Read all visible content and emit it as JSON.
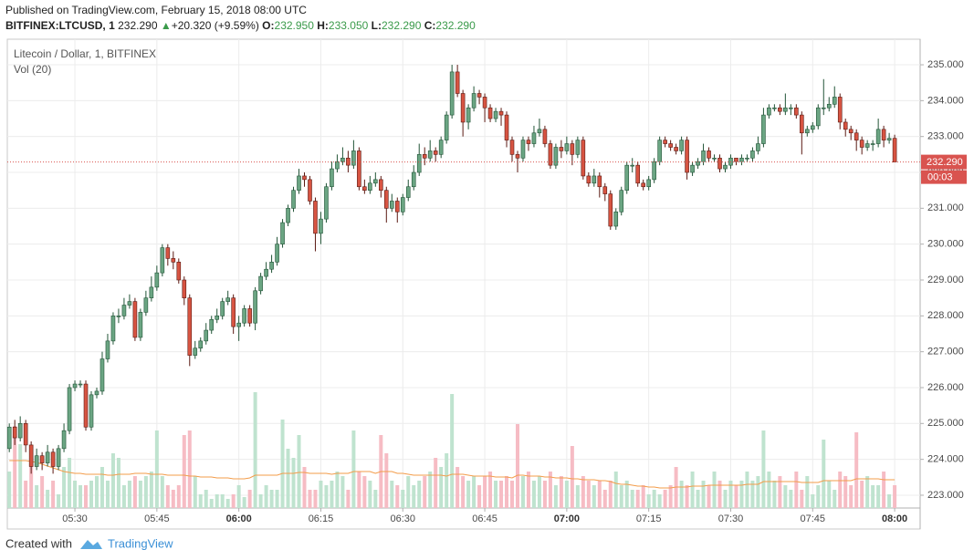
{
  "header": {
    "published": "Published on TradingView.com, February 15, 2018 08:00 UTC",
    "symbol": "BITFINEX:LTCUSD, 1",
    "last": "232.290",
    "arrow": "▲",
    "change": "+20.320 (+9.59%)",
    "o_label": "O:",
    "o": "232.950",
    "h_label": "H:",
    "h": "233.050",
    "l_label": "L:",
    "l": "232.290",
    "c_label": "C:",
    "c": "232.290"
  },
  "chart_data": {
    "type": "candlestick",
    "title": "Litecoin / Dollar, 1, BITFINEX",
    "volume_title": "Vol (20)",
    "x": [
      "05:18",
      "05:19",
      "05:20",
      "05:21",
      "05:22",
      "05:23",
      "05:24",
      "05:25",
      "05:26",
      "05:27",
      "05:28",
      "05:29",
      "05:30",
      "05:31",
      "05:32",
      "05:33",
      "05:34",
      "05:35",
      "05:36",
      "05:37",
      "05:38",
      "05:39",
      "05:40",
      "05:41",
      "05:42",
      "05:43",
      "05:44",
      "05:45",
      "05:46",
      "05:47",
      "05:48",
      "05:49",
      "05:50",
      "05:51",
      "05:52",
      "05:53",
      "05:54",
      "05:55",
      "05:56",
      "05:57",
      "05:58",
      "05:59",
      "06:00",
      "06:01",
      "06:02",
      "06:03",
      "06:04",
      "06:05",
      "06:06",
      "06:07",
      "06:08",
      "06:09",
      "06:10",
      "06:11",
      "06:12",
      "06:13",
      "06:14",
      "06:15",
      "06:16",
      "06:17",
      "06:18",
      "06:19",
      "06:20",
      "06:21",
      "06:22",
      "06:23",
      "06:24",
      "06:25",
      "06:26",
      "06:27",
      "06:28",
      "06:29",
      "06:30",
      "06:31",
      "06:32",
      "06:33",
      "06:34",
      "06:35",
      "06:36",
      "06:37",
      "06:38",
      "06:39",
      "06:40",
      "06:41",
      "06:42",
      "06:43",
      "06:44",
      "06:45",
      "06:46",
      "06:47",
      "06:48",
      "06:49",
      "06:50",
      "06:51",
      "06:52",
      "06:53",
      "06:54",
      "06:55",
      "06:56",
      "06:57",
      "06:58",
      "06:59",
      "07:00",
      "07:01",
      "07:02",
      "07:03",
      "07:04",
      "07:05",
      "07:06",
      "07:07",
      "07:08",
      "07:09",
      "07:10",
      "07:11",
      "07:12",
      "07:13",
      "07:14",
      "07:15",
      "07:16",
      "07:17",
      "07:18",
      "07:19",
      "07:20",
      "07:21",
      "07:22",
      "07:23",
      "07:24",
      "07:25",
      "07:26",
      "07:27",
      "07:28",
      "07:29",
      "07:30",
      "07:31",
      "07:32",
      "07:33",
      "07:34",
      "07:35",
      "07:36",
      "07:37",
      "07:38",
      "07:39",
      "07:40",
      "07:41",
      "07:42",
      "07:43",
      "07:44",
      "07:45",
      "07:46",
      "07:47",
      "07:48",
      "07:49",
      "07:50",
      "07:51",
      "07:52",
      "07:53",
      "07:54",
      "07:55",
      "07:56",
      "07:57",
      "07:58",
      "07:59",
      "08:00"
    ],
    "open": [
      224.3,
      224.9,
      224.6,
      225.0,
      224.4,
      223.8,
      224.1,
      223.9,
      224.2,
      223.8,
      224.3,
      224.8,
      226.0,
      226.1,
      226.1,
      224.9,
      225.8,
      225.9,
      226.8,
      227.3,
      228.0,
      228.0,
      228.3,
      228.4,
      227.4,
      228.1,
      228.5,
      228.8,
      229.2,
      229.9,
      229.6,
      229.5,
      229.0,
      228.5,
      226.9,
      227.1,
      227.3,
      227.6,
      227.9,
      228.0,
      228.4,
      228.5,
      227.7,
      227.8,
      228.2,
      227.8,
      228.7,
      229.1,
      229.3,
      229.5,
      230.0,
      230.6,
      231.0,
      231.5,
      231.9,
      231.8,
      231.2,
      230.3,
      230.7,
      231.6,
      232.1,
      232.3,
      232.4,
      232.2,
      232.6,
      231.6,
      231.5,
      231.7,
      231.8,
      231.5,
      231.0,
      231.2,
      230.9,
      231.3,
      231.6,
      232.0,
      232.5,
      232.4,
      232.6,
      232.5,
      232.9,
      233.6,
      234.8,
      234.2,
      233.4,
      233.8,
      234.2,
      234.1,
      233.8,
      233.5,
      233.7,
      233.6,
      232.9,
      232.5,
      232.4,
      232.9,
      232.8,
      233.1,
      233.2,
      232.8,
      232.2,
      232.7,
      232.6,
      232.8,
      232.5,
      232.9,
      231.9,
      231.7,
      231.9,
      231.6,
      231.4,
      230.5,
      230.9,
      231.5,
      232.2,
      232.2,
      231.7,
      231.6,
      231.8,
      232.3,
      232.9,
      232.8,
      232.7,
      232.6,
      232.9,
      232.0,
      232.2,
      232.3,
      232.6,
      232.4,
      232.4,
      232.1,
      232.2,
      232.4,
      232.3,
      232.4,
      232.4,
      232.6,
      232.8,
      233.6,
      233.8,
      233.8,
      233.7,
      233.8,
      233.8,
      233.6,
      233.1,
      233.2,
      233.3,
      233.8,
      233.8,
      233.9,
      234.1,
      233.4,
      233.2,
      233.1,
      232.9,
      232.7,
      232.8,
      232.8,
      233.2,
      232.9,
      232.95
    ],
    "high": [
      225.0,
      225.1,
      225.2,
      225.1,
      224.5,
      224.3,
      224.2,
      224.4,
      224.3,
      224.4,
      225.0,
      226.1,
      226.2,
      226.2,
      226.2,
      225.9,
      226.0,
      227.0,
      227.5,
      228.1,
      228.2,
      228.5,
      228.6,
      228.5,
      228.2,
      228.7,
      229.1,
      229.4,
      230.0,
      230.0,
      229.8,
      229.6,
      229.1,
      228.6,
      227.3,
      227.4,
      227.8,
      228.0,
      228.2,
      228.5,
      228.7,
      228.6,
      228.0,
      228.3,
      228.3,
      228.8,
      229.2,
      229.5,
      229.7,
      230.2,
      230.7,
      231.1,
      231.6,
      232.1,
      232.0,
      231.9,
      231.3,
      230.9,
      231.7,
      232.3,
      232.5,
      232.7,
      232.6,
      232.9,
      232.7,
      231.8,
      231.9,
      232.0,
      231.9,
      231.6,
      231.4,
      231.3,
      231.4,
      231.8,
      232.2,
      232.8,
      232.7,
      232.9,
      232.7,
      233.0,
      233.7,
      235.0,
      235.0,
      234.3,
      233.9,
      234.4,
      234.3,
      234.2,
      233.9,
      233.8,
      233.8,
      233.7,
      233.0,
      232.6,
      233.0,
      233.0,
      233.3,
      233.5,
      233.3,
      232.9,
      232.8,
      232.9,
      233.0,
      232.9,
      233.0,
      233.0,
      232.0,
      232.1,
      232.0,
      231.7,
      231.5,
      231.0,
      231.6,
      232.3,
      232.4,
      232.3,
      231.8,
      231.9,
      232.4,
      233.0,
      233.0,
      232.9,
      232.8,
      233.0,
      233.0,
      232.3,
      232.4,
      232.8,
      232.7,
      232.5,
      232.5,
      232.3,
      232.5,
      232.4,
      232.5,
      232.5,
      232.7,
      233.0,
      233.8,
      233.9,
      233.9,
      233.9,
      234.2,
      233.9,
      233.9,
      233.7,
      233.3,
      233.4,
      233.9,
      234.6,
      234.1,
      234.4,
      234.2,
      233.5,
      233.3,
      233.2,
      233.0,
      232.9,
      232.9,
      233.5,
      233.3,
      233.1,
      233.05
    ],
    "low": [
      224.2,
      224.4,
      224.5,
      224.2,
      223.6,
      223.7,
      223.7,
      223.8,
      223.6,
      223.7,
      224.2,
      224.7,
      225.9,
      226.0,
      224.8,
      224.8,
      225.7,
      225.8,
      226.7,
      227.2,
      227.8,
      227.9,
      228.2,
      227.3,
      227.3,
      228.0,
      228.4,
      228.7,
      229.1,
      229.4,
      229.3,
      228.9,
      228.3,
      226.6,
      226.8,
      227.0,
      227.2,
      227.5,
      227.8,
      227.9,
      228.3,
      227.5,
      227.3,
      227.7,
      227.7,
      227.6,
      228.6,
      229.0,
      229.2,
      229.4,
      229.9,
      230.5,
      230.9,
      231.4,
      231.6,
      231.1,
      229.8,
      230.0,
      230.6,
      231.5,
      232.0,
      232.2,
      232.0,
      232.1,
      231.5,
      231.4,
      231.4,
      231.6,
      231.3,
      230.6,
      230.9,
      230.6,
      230.8,
      231.2,
      231.5,
      231.9,
      232.2,
      232.3,
      232.3,
      232.4,
      232.8,
      233.5,
      234.1,
      233.0,
      233.2,
      233.7,
      233.9,
      233.4,
      233.4,
      233.4,
      233.3,
      232.7,
      232.3,
      232.0,
      232.3,
      232.6,
      232.7,
      233.0,
      232.7,
      232.1,
      232.1,
      232.4,
      232.5,
      232.2,
      232.4,
      231.8,
      231.6,
      231.6,
      231.3,
      231.2,
      230.4,
      230.4,
      230.8,
      231.4,
      232.0,
      231.6,
      231.5,
      231.5,
      231.7,
      232.2,
      232.7,
      232.6,
      232.5,
      232.5,
      231.8,
      231.9,
      232.1,
      232.2,
      232.3,
      232.3,
      232.0,
      232.0,
      232.1,
      232.2,
      232.2,
      232.3,
      232.3,
      232.5,
      232.7,
      233.5,
      233.7,
      233.6,
      233.6,
      233.6,
      233.5,
      232.5,
      233.0,
      233.1,
      233.2,
      233.6,
      233.7,
      233.8,
      233.2,
      233.0,
      232.9,
      232.6,
      232.5,
      232.6,
      232.6,
      232.7,
      232.7,
      232.8,
      232.29
    ],
    "close": [
      224.9,
      224.6,
      225.0,
      224.4,
      223.8,
      224.1,
      223.9,
      224.2,
      223.8,
      224.3,
      224.8,
      226.0,
      226.1,
      226.1,
      224.9,
      225.8,
      225.9,
      226.8,
      227.3,
      228.0,
      228.0,
      228.3,
      228.4,
      227.4,
      228.1,
      228.5,
      228.8,
      229.2,
      229.9,
      229.6,
      229.5,
      229.0,
      228.5,
      226.9,
      227.1,
      227.3,
      227.6,
      227.9,
      228.0,
      228.4,
      228.5,
      227.7,
      227.8,
      228.2,
      227.8,
      228.7,
      229.1,
      229.3,
      229.5,
      230.0,
      230.6,
      231.0,
      231.5,
      231.9,
      231.8,
      231.2,
      230.3,
      230.7,
      231.6,
      232.1,
      232.3,
      232.4,
      232.2,
      232.6,
      231.6,
      231.5,
      231.7,
      231.8,
      231.5,
      231.0,
      231.2,
      230.9,
      231.3,
      231.6,
      232.0,
      232.5,
      232.4,
      232.6,
      232.5,
      232.9,
      233.6,
      234.8,
      234.2,
      233.4,
      233.8,
      234.2,
      234.1,
      233.8,
      233.5,
      233.7,
      233.6,
      232.9,
      232.5,
      232.4,
      232.9,
      232.8,
      233.1,
      233.2,
      232.8,
      232.2,
      232.7,
      232.6,
      232.8,
      232.5,
      232.9,
      231.9,
      231.7,
      231.9,
      231.6,
      231.4,
      230.5,
      230.9,
      231.5,
      232.2,
      232.2,
      231.7,
      231.6,
      231.8,
      232.3,
      232.9,
      232.8,
      232.7,
      232.6,
      232.9,
      232.0,
      232.2,
      232.3,
      232.6,
      232.4,
      232.4,
      232.1,
      232.2,
      232.4,
      232.3,
      232.4,
      232.4,
      232.6,
      232.8,
      233.6,
      233.8,
      233.8,
      233.7,
      233.8,
      233.8,
      233.6,
      233.1,
      233.2,
      233.3,
      233.8,
      233.8,
      233.9,
      234.1,
      233.4,
      233.2,
      233.1,
      232.9,
      232.7,
      232.8,
      232.8,
      233.2,
      232.9,
      232.95,
      232.29
    ],
    "volume": [
      40,
      90,
      70,
      30,
      55,
      25,
      35,
      20,
      30,
      15,
      45,
      55,
      30,
      25,
      25,
      30,
      35,
      45,
      30,
      60,
      55,
      25,
      30,
      35,
      30,
      35,
      40,
      85,
      35,
      25,
      20,
      25,
      80,
      85,
      35,
      15,
      20,
      10,
      15,
      15,
      10,
      15,
      25,
      12,
      20,
      127,
      15,
      25,
      20,
      20,
      97,
      65,
      55,
      80,
      45,
      20,
      20,
      30,
      25,
      30,
      40,
      35,
      20,
      85,
      40,
      35,
      30,
      20,
      80,
      60,
      30,
      25,
      20,
      35,
      25,
      30,
      35,
      40,
      55,
      45,
      60,
      125,
      45,
      35,
      30,
      35,
      25,
      35,
      40,
      30,
      30,
      35,
      30,
      92,
      35,
      40,
      30,
      35,
      30,
      40,
      25,
      35,
      30,
      68,
      25,
      35,
      30,
      25,
      30,
      20,
      30,
      40,
      25,
      30,
      20,
      20,
      25,
      15,
      20,
      15,
      20,
      25,
      45,
      30,
      25,
      40,
      20,
      30,
      25,
      40,
      30,
      20,
      30,
      25,
      30,
      40,
      30,
      35,
      85,
      40,
      30,
      35,
      25,
      20,
      40,
      20,
      35,
      15,
      25,
      75,
      30,
      20,
      40,
      35,
      25,
      83,
      30,
      35,
      25,
      25,
      40,
      15,
      25
    ],
    "volume_ma": [
      52,
      52,
      52,
      52,
      51,
      50,
      48,
      46,
      44,
      42,
      40,
      39,
      38,
      38,
      37,
      37,
      37,
      37,
      36,
      36,
      37,
      37,
      37,
      38,
      38,
      38,
      37,
      37,
      37,
      36,
      36,
      36,
      36,
      35,
      35,
      34,
      34,
      34,
      33,
      33,
      33,
      32,
      32,
      32,
      33,
      36,
      36,
      36,
      36,
      36,
      38,
      38,
      38,
      39,
      39,
      38,
      38,
      38,
      38,
      37,
      38,
      38,
      38,
      40,
      40,
      40,
      40,
      38,
      40,
      40,
      40,
      38,
      38,
      37,
      36,
      36,
      36,
      36,
      36,
      36,
      35,
      37,
      37,
      37,
      36,
      35,
      35,
      35,
      35,
      34,
      34,
      34,
      33,
      36,
      36,
      35,
      35,
      35,
      34,
      34,
      33,
      33,
      33,
      32,
      32,
      31,
      31,
      31,
      30,
      30,
      29,
      27,
      26,
      26,
      25,
      24,
      24,
      23,
      23,
      22,
      22,
      22,
      23,
      23,
      23,
      24,
      24,
      24,
      25,
      25,
      25,
      25,
      25,
      25,
      25,
      26,
      26,
      26,
      29,
      29,
      29,
      29,
      29,
      29,
      29,
      28,
      28,
      28,
      28,
      30,
      30,
      30,
      30,
      30,
      30,
      32,
      32,
      32,
      32,
      32,
      31,
      31,
      31
    ],
    "up_color": "#6ba583",
    "up_edge": "#225437",
    "down_color": "#d75442",
    "down_edge": "#5b1a13",
    "volume_up_color": "#bfe3cf",
    "volume_down_color": "#f6bcc4",
    "ma_color": "#f39c4a",
    "last_color": "#d9534f",
    "ylim": [
      222.6,
      235.7
    ],
    "yticks": [
      {
        "value": 223,
        "label": "223.000"
      },
      {
        "value": 224,
        "label": "224.000"
      },
      {
        "value": 225,
        "label": "225.000"
      },
      {
        "value": 226,
        "label": "226.000"
      },
      {
        "value": 227,
        "label": "227.000"
      },
      {
        "value": 228,
        "label": "228.000"
      },
      {
        "value": 229,
        "label": "229.000"
      },
      {
        "value": 230,
        "label": "230.000"
      },
      {
        "value": 231,
        "label": "231.000"
      },
      {
        "value": 232,
        "label": "232.000"
      },
      {
        "value": 233,
        "label": "233.000"
      },
      {
        "value": 234,
        "label": "234.000"
      },
      {
        "value": 235,
        "label": "235.000"
      }
    ],
    "xticks": [
      "05:30",
      "05:45",
      "06:00",
      "06:15",
      "06:30",
      "06:45",
      "07:00",
      "07:15",
      "07:30",
      "07:45",
      "08:00"
    ],
    "grid": true,
    "price_label": "232.290",
    "countdown": "00:03"
  },
  "footer": {
    "text": "Created with",
    "brand": "TradingView"
  }
}
